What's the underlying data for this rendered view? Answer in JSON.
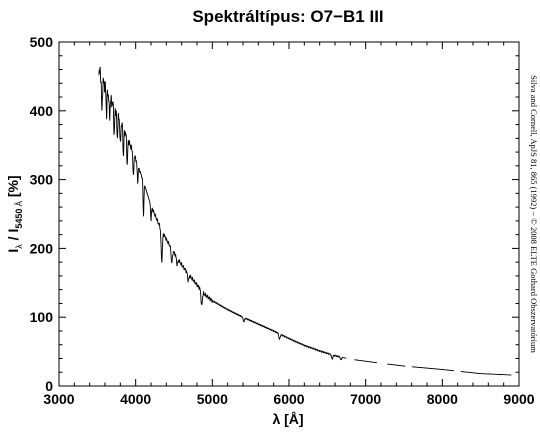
{
  "chart_data": {
    "type": "line",
    "title": "Spektráltípus: O7−B1 III",
    "xlabel": "λ [Å]",
    "ylabel": {
      "prefix": "I",
      "lambda_sub": "λ",
      "sep": " / I",
      "sub": "5450",
      "sub_unit": " Å",
      "suffix": " [%]"
    },
    "credit": "Silva and Cornell, ApJS 81, 865 (1992) − © 2008 ELTE Gothard Obszervatórium",
    "xlim": [
      3000,
      9000
    ],
    "ylim": [
      0,
      500
    ],
    "xticks": [
      3000,
      4000,
      5000,
      6000,
      7000,
      8000,
      9000
    ],
    "yticks": [
      0,
      100,
      200,
      300,
      400,
      500
    ],
    "grid": false,
    "series": [
      {
        "color": "#000000",
        "continuum": [
          [
            3520,
            460
          ],
          [
            3600,
            435
          ],
          [
            3700,
            410
          ],
          [
            3800,
            385
          ],
          [
            3900,
            358
          ],
          [
            4000,
            330
          ],
          [
            4100,
            298
          ],
          [
            4200,
            262
          ],
          [
            4300,
            236
          ],
          [
            4400,
            213
          ],
          [
            4500,
            194
          ],
          [
            4600,
            176
          ],
          [
            4700,
            161
          ],
          [
            4800,
            147
          ],
          [
            4900,
            133
          ],
          [
            5000,
            124
          ],
          [
            5200,
            111
          ],
          [
            5400,
            100
          ],
          [
            5600,
            90
          ],
          [
            5800,
            80
          ],
          [
            6000,
            69
          ],
          [
            6200,
            59
          ],
          [
            6400,
            51
          ],
          [
            6600,
            44
          ],
          [
            6800,
            39
          ],
          [
            7000,
            36
          ],
          [
            7200,
            33
          ],
          [
            7500,
            29
          ],
          [
            8000,
            24
          ],
          [
            8500,
            18
          ],
          [
            8900,
            16
          ]
        ],
        "absorption_lines": [
          [
            3560,
            50
          ],
          [
            3620,
            35
          ],
          [
            3660,
            30
          ],
          [
            3720,
            40
          ],
          [
            3760,
            35
          ],
          [
            3800,
            35
          ],
          [
            3840,
            40
          ],
          [
            3890,
            40
          ],
          [
            3970,
            35
          ],
          [
            4026,
            25
          ],
          [
            4102,
            50
          ],
          [
            4200,
            20
          ],
          [
            4340,
            45
          ],
          [
            4471,
            20
          ],
          [
            4541,
            10
          ],
          [
            4686,
            10
          ],
          [
            4861,
            22
          ],
          [
            5411,
            6
          ],
          [
            5876,
            8
          ],
          [
            6563,
            6
          ],
          [
            6678,
            4
          ]
        ],
        "gaps": [
          [
            6750,
            6850
          ],
          [
            7150,
            7280
          ],
          [
            7520,
            7600
          ],
          [
            8150,
            8240
          ]
        ]
      }
    ]
  }
}
